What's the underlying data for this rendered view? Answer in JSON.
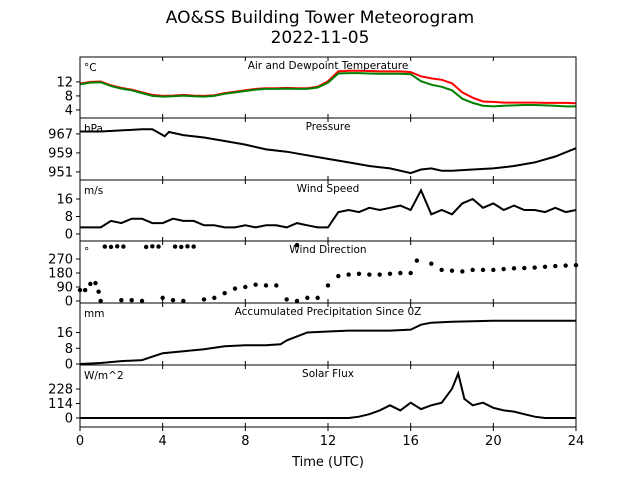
{
  "chart_data": {
    "type": "line",
    "title": "AO&SS Building Tower Meteorogram",
    "subtitle": "2022-11-05",
    "xlabel": "Time (UTC)",
    "xlim": [
      0,
      24
    ],
    "xticks": [
      0,
      4,
      8,
      12,
      16,
      20,
      24
    ],
    "panels": [
      {
        "title": "Air and Dewpoint Temperature",
        "unit": "°C",
        "ylim": [
          1.7,
          19.1
        ],
        "yticks": [
          4,
          8,
          12
        ],
        "series": [
          {
            "name": "Air Temperature",
            "color": "#ff0000",
            "mode": "line",
            "x": [
              0,
              0.5,
              1,
              1.5,
              2,
              2.5,
              3,
              3.5,
              4,
              4.5,
              5,
              5.5,
              6,
              6.5,
              7,
              7.5,
              8,
              8.5,
              9,
              9.5,
              10,
              10.5,
              11,
              11.5,
              12,
              12.5,
              13,
              13.5,
              14,
              14.5,
              15,
              15.5,
              16,
              16.5,
              17,
              17.5,
              18,
              18.5,
              19,
              19.5,
              20,
              20.5,
              21,
              21.5,
              22,
              22.5,
              23,
              23.5,
              24
            ],
            "y": [
              11.5,
              12,
              12.1,
              11,
              10.3,
              9.8,
              9,
              8.3,
              8,
              8.1,
              8.3,
              8.1,
              8,
              8.2,
              8.8,
              9.2,
              9.6,
              10,
              10.2,
              10.2,
              10.3,
              10.2,
              10.2,
              10.6,
              12.2,
              15,
              15.2,
              15.2,
              15.1,
              15,
              15,
              15,
              14.8,
              13.6,
              13,
              12.6,
              11.6,
              9,
              7.5,
              6.4,
              6.3,
              6.1,
              6.1,
              6.1,
              6.1,
              6,
              6,
              6,
              5.9
            ]
          },
          {
            "name": "Dewpoint",
            "color": "#008000",
            "mode": "line",
            "x": [
              0,
              0.5,
              1,
              1.5,
              2,
              2.5,
              3,
              3.5,
              4,
              4.5,
              5,
              5.5,
              6,
              6.5,
              7,
              7.5,
              8,
              8.5,
              9,
              9.5,
              10,
              10.5,
              11,
              11.5,
              12,
              12.5,
              13,
              13.5,
              14,
              14.5,
              15,
              15.5,
              16,
              16.5,
              17,
              17.5,
              18,
              18.5,
              19,
              19.5,
              20,
              20.5,
              21,
              21.5,
              22,
              22.5,
              23,
              23.5,
              24
            ],
            "y": [
              11.3,
              11.8,
              11.9,
              10.8,
              10.1,
              9.6,
              8.8,
              8,
              7.8,
              7.9,
              8.1,
              7.9,
              7.8,
              8,
              8.6,
              9,
              9.4,
              9.8,
              10,
              10,
              10.1,
              10,
              10,
              10.4,
              11.8,
              14.4,
              14.5,
              14.5,
              14.4,
              14.3,
              14.3,
              14.3,
              14.2,
              12.2,
              11.2,
              10.6,
              9.6,
              7.2,
              6,
              5.2,
              5,
              5.2,
              5.3,
              5.4,
              5.4,
              5.3,
              5.2,
              5,
              5
            ]
          }
        ]
      },
      {
        "title": "Pressure",
        "unit": "hPa",
        "ylim": [
          947.6,
          973.7
        ],
        "yticks": [
          951,
          959,
          967
        ],
        "series": [
          {
            "name": "Pressure",
            "color": "#000000",
            "mode": "line",
            "x": [
              0,
              1,
              2,
              3,
              3.5,
              3.9,
              4.1,
              4.3,
              5,
              6,
              7,
              8,
              9,
              10,
              11,
              12,
              13,
              14,
              15,
              16,
              16.5,
              17,
              17.5,
              18,
              19,
              20,
              21,
              22,
              23,
              24
            ],
            "y": [
              968,
              968,
              968.5,
              969,
              969,
              967,
              966,
              967.8,
              966.5,
              965.5,
              964,
              962.5,
              960.5,
              959.5,
              958,
              956.5,
              955,
              953.5,
              952.5,
              950.5,
              952,
              952.5,
              951.5,
              951.5,
              952,
              952.5,
              953.5,
              955,
              957.5,
              961
            ]
          }
        ]
      },
      {
        "title": "Wind Speed",
        "unit": "m/s",
        "ylim": [
          -3.2,
          24.7
        ],
        "yticks": [
          0,
          8,
          16
        ],
        "series": [
          {
            "name": "Wind Speed",
            "color": "#000000",
            "mode": "line",
            "x": [
              0,
              0.5,
              1,
              1.5,
              2,
              2.5,
              3,
              3.5,
              4,
              4.5,
              5,
              5.5,
              6,
              6.5,
              7,
              7.5,
              8,
              8.5,
              9,
              9.5,
              10,
              10.5,
              11,
              11.5,
              12,
              12.5,
              13,
              13.5,
              14,
              14.5,
              15,
              15.5,
              16,
              16.5,
              17,
              17.5,
              18,
              18.5,
              19,
              19.5,
              20,
              20.5,
              21,
              21.5,
              22,
              22.5,
              23,
              23.5,
              24
            ],
            "y": [
              3,
              3,
              3,
              6,
              5,
              7,
              7,
              5,
              5,
              7,
              6,
              6,
              4,
              4,
              3,
              3,
              4,
              3,
              4,
              4,
              3,
              5,
              4,
              3,
              3,
              10,
              11,
              10,
              12,
              11,
              12,
              13,
              11,
              20,
              9,
              11,
              9,
              14,
              16,
              12,
              14,
              11,
              13,
              11,
              11,
              10,
              12,
              10,
              11
            ]
          }
        ]
      },
      {
        "title": "Wind Direction",
        "unit": "°",
        "ylim": [
          -13,
          386
        ],
        "yticks": [
          0,
          90,
          180,
          270
        ],
        "series": [
          {
            "name": "Wind Direction",
            "color": "#000000",
            "mode": "scatter",
            "x": [
              0,
              0.25,
              0.5,
              0.75,
              0.9,
              1,
              1.2,
              1.5,
              1.8,
              2.1,
              2,
              2.5,
              3,
              3.2,
              3.5,
              3.8,
              4,
              4.5,
              4.6,
              4.9,
              5.2,
              5.5,
              5,
              6,
              6.5,
              7,
              7.5,
              8,
              8.5,
              9,
              9.5,
              10,
              10.5,
              10.5,
              11,
              11.5,
              12,
              12.5,
              13,
              13.5,
              14,
              14.5,
              15,
              15.5,
              16,
              16.3,
              17,
              17.5,
              18,
              18.5,
              19,
              19.5,
              20,
              20.5,
              21,
              21.5,
              22,
              22.5,
              23,
              23.5,
              24
            ],
            "y": [
              70,
              70,
              110,
              115,
              60,
              0,
              350,
              348,
              352,
              350,
              5,
              5,
              0,
              348,
              352,
              350,
              20,
              5,
              350,
              348,
              352,
              350,
              0,
              10,
              20,
              50,
              80,
              90,
              105,
              100,
              100,
              10,
              0,
              360,
              20,
              20,
              100,
              160,
              170,
              175,
              170,
              170,
              175,
              180,
              180,
              260,
              240,
              200,
              195,
              190,
              200,
              200,
              200,
              205,
              210,
              212,
              215,
              220,
              225,
              228,
              230
            ]
          }
        ]
      },
      {
        "title": "Accumulated Precipitation Since 0Z",
        "unit": "mm",
        "ylim": [
          -0.5,
          31
        ],
        "yticks": [
          0,
          8,
          16
        ],
        "series": [
          {
            "name": "Precipitation",
            "color": "#000000",
            "mode": "line",
            "x": [
              0,
              1,
              2,
              3,
              4,
              5,
              6,
              7,
              8,
              9,
              9.7,
              10,
              11,
              12,
              13,
              14,
              15,
              16,
              16.5,
              17,
              18,
              20,
              24
            ],
            "y": [
              0,
              0.5,
              1.5,
              2,
              5.5,
              6.5,
              7.5,
              9,
              9.5,
              9.5,
              10,
              12,
              16,
              16.5,
              17,
              17,
              17,
              17.5,
              20,
              21,
              21.5,
              22,
              22
            ]
          }
        ]
      },
      {
        "title": "Solar Flux",
        "unit": "W/m^2",
        "ylim": [
          -71,
          417
        ],
        "yticks": [
          0,
          114,
          228
        ],
        "series": [
          {
            "name": "Solar Flux",
            "color": "#000000",
            "mode": "line",
            "x": [
              0,
              13,
              13.5,
              14,
              14.5,
              15,
              15.5,
              16,
              16.5,
              17,
              17.5,
              18,
              18.3,
              18.6,
              19,
              19.5,
              20,
              20.5,
              21,
              21.5,
              22,
              22.5,
              24
            ],
            "y": [
              0,
              0,
              10,
              30,
              60,
              100,
              60,
              120,
              70,
              100,
              120,
              230,
              350,
              150,
              100,
              120,
              80,
              60,
              50,
              30,
              10,
              0,
              0
            ]
          }
        ]
      }
    ]
  }
}
